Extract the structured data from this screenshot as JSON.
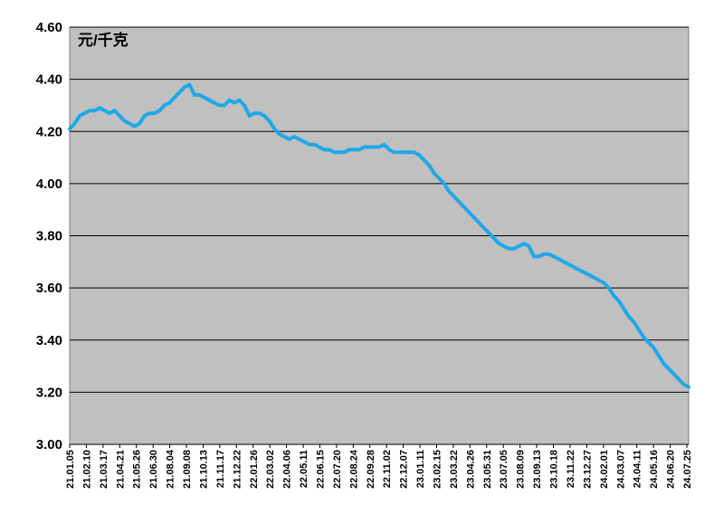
{
  "chart_data": {
    "type": "line",
    "title": "",
    "xlabel": "",
    "ylabel": "",
    "unit_label": "元/千克",
    "ylim": [
      3.0,
      4.6
    ],
    "y_ticks": [
      "3.00",
      "3.20",
      "3.40",
      "3.60",
      "3.80",
      "4.00",
      "4.20",
      "4.40",
      "4.60"
    ],
    "grid": true,
    "background": "#C0C0C0",
    "line_color": "#1EA8E8",
    "x_tick_labels": [
      "21.01.05",
      "21.02.10",
      "21.03.17",
      "21.04.21",
      "21.05.26",
      "21.06.30",
      "21.08.04",
      "21.09.08",
      "21.10.13",
      "21.11.17",
      "21.12.22",
      "22.01.26",
      "22.03.02",
      "22.04.06",
      "22.05.11",
      "22.06.15",
      "22.07.20",
      "22.08.24",
      "22.09.28",
      "22.11.02",
      "22.12.07",
      "23.01.11",
      "23.02.15",
      "23.03.22",
      "23.04.26",
      "23.05.31",
      "23.07.05",
      "23.08.09",
      "23.09.13",
      "23.10.18",
      "23.11.22",
      "23.12.27",
      "24.02.01",
      "24.03.07",
      "24.04.11",
      "24.05.16",
      "24.06.20",
      "24.07.25"
    ],
    "series": [
      {
        "values": [
          4.21,
          4.23,
          4.26,
          4.27,
          4.28,
          4.28,
          4.29,
          4.28,
          4.27,
          4.28,
          4.26,
          4.24,
          4.23,
          4.22,
          4.23,
          4.26,
          4.27,
          4.27,
          4.28,
          4.3,
          4.31,
          4.33,
          4.35,
          4.37,
          4.38,
          4.34,
          4.34,
          4.33,
          4.32,
          4.31,
          4.3,
          4.3,
          4.32,
          4.31,
          4.32,
          4.3,
          4.26,
          4.27,
          4.27,
          4.26,
          4.24,
          4.21,
          4.19,
          4.18,
          4.17,
          4.18,
          4.17,
          4.16,
          4.15,
          4.15,
          4.14,
          4.13,
          4.13,
          4.12,
          4.12,
          4.12,
          4.13,
          4.13,
          4.13,
          4.14,
          4.14,
          4.14,
          4.14,
          4.15,
          4.13,
          4.12,
          4.12,
          4.12,
          4.12,
          4.12,
          4.11,
          4.09,
          4.07,
          4.04,
          4.02,
          4.0,
          3.97,
          3.95,
          3.93,
          3.91,
          3.89,
          3.87,
          3.85,
          3.83,
          3.81,
          3.79,
          3.77,
          3.76,
          3.75,
          3.75,
          3.76,
          3.77,
          3.76,
          3.72,
          3.72,
          3.73,
          3.73,
          3.72,
          3.71,
          3.7,
          3.69,
          3.68,
          3.67,
          3.66,
          3.65,
          3.64,
          3.63,
          3.62,
          3.6,
          3.57,
          3.55,
          3.52,
          3.49,
          3.47,
          3.44,
          3.41,
          3.39,
          3.37,
          3.34,
          3.31,
          3.29,
          3.27,
          3.25,
          3.23,
          3.22
        ]
      }
    ]
  }
}
